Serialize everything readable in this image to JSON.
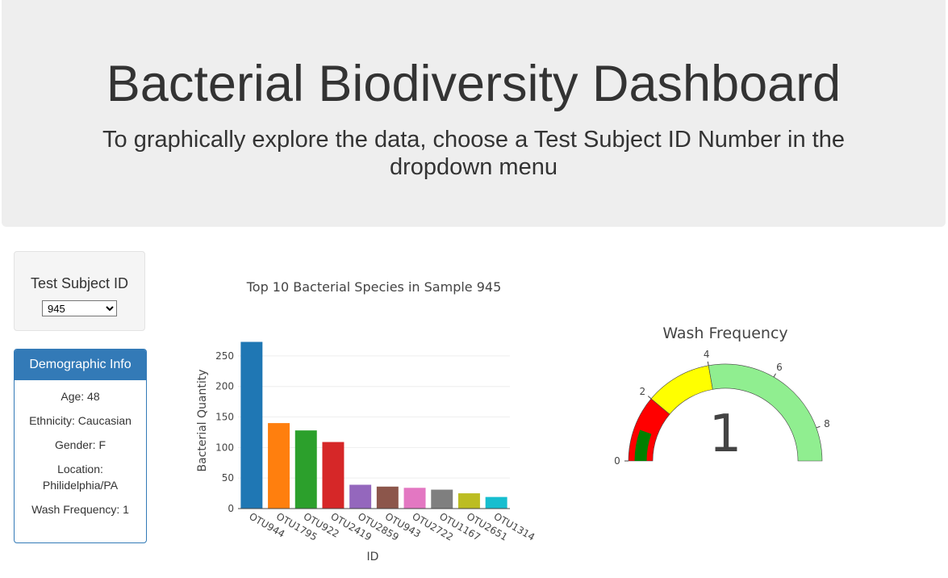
{
  "header": {
    "title": "Bacterial Biodiversity Dashboard",
    "subtitle": "To graphically explore the data, choose a Test Subject ID Number in the dropdown menu"
  },
  "selector": {
    "label": "Test Subject ID",
    "selected": "945"
  },
  "demographics": {
    "title": "Demographic Info",
    "lines": [
      "Age: 48",
      "Ethnicity: Caucasian",
      "Gender: F",
      "Location: Philidelphia/PA",
      "Wash Frequency: 1"
    ]
  },
  "chart_data": [
    {
      "type": "bar",
      "title": "Top 10 Bacterial Species in Sample 945",
      "xlabel": "ID",
      "ylabel": "Bacterial Quantity",
      "categories": [
        "OTU944",
        "OTU1795",
        "OTU922",
        "OTU2419",
        "OTU2859",
        "OTU943",
        "OTU2722",
        "OTU1167",
        "OTU2651",
        "OTU1314"
      ],
      "values": [
        273,
        140,
        128,
        109,
        39,
        36,
        34,
        31,
        25,
        19
      ],
      "colors": [
        "#1f77b4",
        "#ff7f0e",
        "#2ca02c",
        "#d62728",
        "#9467bd",
        "#8c564b",
        "#e377c2",
        "#7f7f7f",
        "#bcbd22",
        "#17becf"
      ],
      "ylim": [
        0,
        275
      ],
      "yticks": [
        0,
        50,
        100,
        150,
        200,
        250
      ],
      "grid": true
    },
    {
      "type": "gauge",
      "title": "Wash Frequency",
      "value": 1,
      "range": [
        0,
        9
      ],
      "ticks": [
        0,
        2,
        4,
        6,
        8
      ],
      "steps": [
        {
          "range": [
            0,
            2
          ],
          "color": "#ff0000"
        },
        {
          "range": [
            2,
            4
          ],
          "color": "#ffff00"
        },
        {
          "range": [
            4,
            9
          ],
          "color": "#90ee90"
        }
      ],
      "bar_color": "#008000"
    }
  ]
}
